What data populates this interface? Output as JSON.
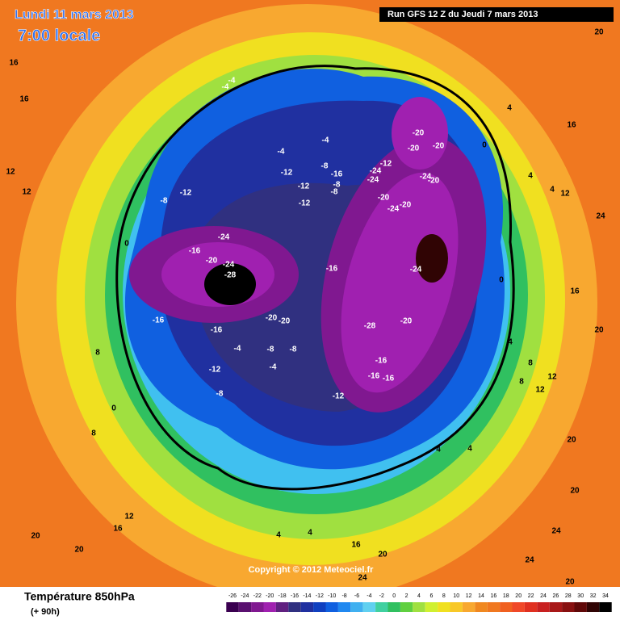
{
  "header": {
    "date": "Lundi 11 mars 2013",
    "time": "7:00 locale",
    "run": "Run GFS 12 Z du Jeudi 7 mars 2013"
  },
  "map": {
    "contour_labels": [
      -28,
      -24,
      -24,
      -20,
      -16,
      -16,
      -16,
      -20,
      -20,
      -12,
      -8,
      -12,
      -12,
      -12,
      -8,
      -16,
      -8,
      -8,
      -4,
      -4,
      -4,
      -4,
      -16,
      -24,
      -28,
      -20,
      -16,
      -16,
      -16,
      -12,
      -20,
      -20,
      -20,
      -12,
      -24,
      -24,
      -20,
      -24,
      -20,
      -24,
      -20,
      -8,
      -8,
      -4,
      -4,
      -12,
      -8,
      0,
      0,
      8,
      12,
      16,
      20,
      20,
      4,
      4,
      16,
      20,
      24,
      20,
      20,
      24,
      24,
      20,
      24,
      20,
      16,
      16,
      20,
      12,
      12,
      8,
      8,
      4,
      0,
      4,
      4,
      12,
      4,
      0,
      4,
      4,
      8,
      16,
      16,
      12,
      12
    ]
  },
  "footer": {
    "copyright": "Copyright © 2012 Meteociel.fr",
    "title": "Température 850hPa",
    "lead": "(+ 90h)"
  },
  "colorbar": {
    "ticks": [
      -26,
      -24,
      -22,
      -20,
      -18,
      -16,
      -14,
      -12,
      -10,
      -8,
      -6,
      -4,
      -2,
      0,
      2,
      4,
      6,
      8,
      10,
      12,
      14,
      16,
      18,
      20,
      22,
      24,
      26,
      28,
      30,
      32,
      34
    ],
    "colors": [
      "#3a0050",
      "#5a1070",
      "#801890",
      "#a020b0",
      "#602080",
      "#303080",
      "#2030a0",
      "#1040c0",
      "#1060e0",
      "#2088f0",
      "#40b0f0",
      "#60d0f0",
      "#40d0a0",
      "#30c060",
      "#60d040",
      "#a0e040",
      "#d0f030",
      "#f0e020",
      "#f8c828",
      "#f8a830",
      "#f08820",
      "#f07820",
      "#f06020",
      "#f04828",
      "#e03020",
      "#c82020",
      "#a81818",
      "#881010",
      "#600808",
      "#300404",
      "#000000"
    ]
  }
}
